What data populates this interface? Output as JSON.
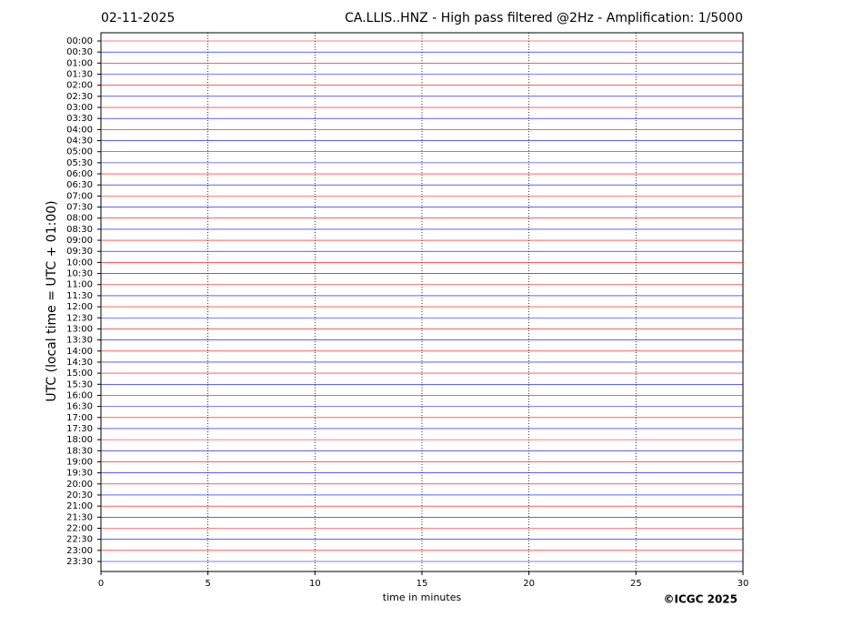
{
  "chart_data": {
    "type": "helicorder",
    "date": "02-11-2025",
    "title": "CA.LLIS..HNZ - High pass filtered @2Hz - Amplification: 1/5000",
    "ylabel": "UTC (local time = UTC + 01:00)",
    "xlabel": "time in minutes",
    "copyright": "©ICGC 2025",
    "categories": [
      "00:00",
      "00:30",
      "01:00",
      "01:30",
      "02:00",
      "02:30",
      "03:00",
      "03:30",
      "04:00",
      "04:30",
      "05:00",
      "05:30",
      "06:00",
      "06:30",
      "07:00",
      "07:30",
      "08:00",
      "08:30",
      "09:00",
      "09:30",
      "10:00",
      "10:30",
      "11:00",
      "11:30",
      "12:00",
      "12:30",
      "13:00",
      "13:30",
      "14:00",
      "14:30",
      "15:00",
      "15:30",
      "16:00",
      "16:30",
      "17:00",
      "17:30",
      "18:00",
      "18:30",
      "19:00",
      "19:30",
      "20:00",
      "20:30",
      "21:00",
      "21:30",
      "22:00",
      "22:30",
      "23:00",
      "23:30"
    ],
    "trace_colors": [
      "#ff0000",
      "#0000ff"
    ],
    "xlim": [
      0,
      30
    ],
    "xticks": [
      0,
      5,
      10,
      15,
      20,
      25,
      30
    ],
    "grid": true
  }
}
